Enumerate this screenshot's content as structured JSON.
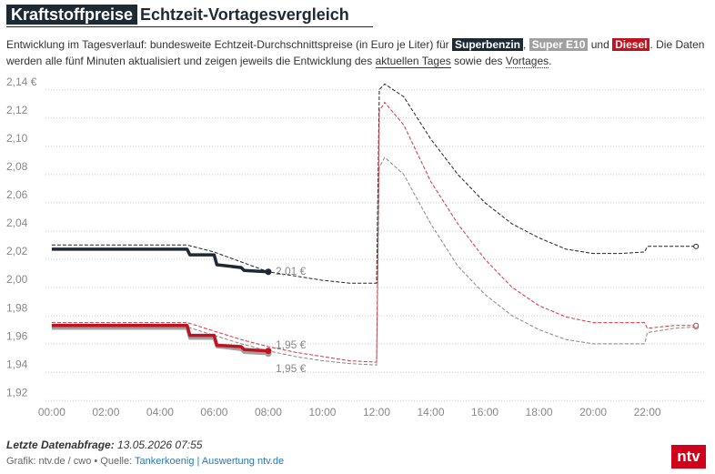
{
  "chart_data": {
    "type": "line",
    "title_box": "Kraftstoffpreise",
    "title": "Echtzeit-Vortagesvergleich",
    "subtitle_parts": [
      "Entwicklung im Tagesverlauf: bundesweite Echtzeit-Durchschnittspreise (in Euro je Liter) für ",
      ", ",
      " und ",
      ". Die Daten werden alle fünf Minuten aktualisiert und zeigen jeweils die Entwicklung des ",
      "aktuellen Tages",
      " sowie des ",
      "Vortages",
      "."
    ],
    "xlim": [
      -0.5,
      24.5
    ],
    "ylim": [
      1.915,
      2.145
    ],
    "xticks": [
      {
        "value": 0,
        "label": "00:00"
      },
      {
        "value": 2,
        "label": "02:00"
      },
      {
        "value": 4,
        "label": "04:00"
      },
      {
        "value": 6,
        "label": "06:00"
      },
      {
        "value": 8,
        "label": "08:00"
      },
      {
        "value": 10,
        "label": "10:00"
      },
      {
        "value": 12,
        "label": "12:00"
      },
      {
        "value": 14,
        "label": "14:00"
      },
      {
        "value": 16,
        "label": "16:00"
      },
      {
        "value": 18,
        "label": "18:00"
      },
      {
        "value": 20,
        "label": "20:00"
      },
      {
        "value": 22,
        "label": "22:00"
      }
    ],
    "yticks": [
      {
        "value": 2.14,
        "label": "2,14 €"
      },
      {
        "value": 2.12,
        "label": "2,12"
      },
      {
        "value": 2.1,
        "label": "2,10"
      },
      {
        "value": 2.08,
        "label": "2,08"
      },
      {
        "value": 2.06,
        "label": "2,06"
      },
      {
        "value": 2.04,
        "label": "2,04"
      },
      {
        "value": 2.02,
        "label": "2,02"
      },
      {
        "value": 2.0,
        "label": "2,00"
      },
      {
        "value": 1.98,
        "label": "1,98"
      },
      {
        "value": 1.96,
        "label": "1,96"
      },
      {
        "value": 1.94,
        "label": "1,94"
      },
      {
        "value": 1.92,
        "label": "1,92"
      }
    ],
    "grid": true,
    "series": [
      {
        "name": "Superbenzin",
        "color": "#1e2a33",
        "previous_color": "#222222",
        "today": {
          "x": [
            0,
            5,
            5.1,
            6,
            6.1,
            7,
            7.1,
            8
          ],
          "values": [
            2.022,
            2.022,
            2.018,
            2.018,
            2.011,
            2.009,
            2.007,
            2.006
          ]
        },
        "previous": {
          "x": [
            0,
            5,
            6,
            7,
            8,
            9,
            10,
            11,
            12,
            12.1,
            12.3,
            13,
            14,
            15,
            16,
            17,
            18,
            19,
            20,
            21,
            21.9,
            22,
            23,
            23.8
          ],
          "values": [
            2.025,
            2.025,
            2.02,
            2.013,
            2.006,
            2.003,
            2.0,
            1.998,
            1.998,
            2.135,
            2.139,
            2.13,
            2.1,
            2.075,
            2.055,
            2.04,
            2.03,
            2.022,
            2.019,
            2.019,
            2.02,
            2.024,
            2.024,
            2.024
          ]
        },
        "end_label": "2,01 €"
      },
      {
        "name": "Super E10",
        "color": "#a0a0a0",
        "previous_color": "#888888",
        "today": {
          "x": [
            0,
            5,
            5.1,
            6,
            6.1,
            7,
            7.1,
            8
          ],
          "values": [
            1.966,
            1.966,
            1.959,
            1.959,
            1.953,
            1.951,
            1.949,
            1.948
          ]
        },
        "previous": {
          "x": [
            0,
            5,
            6,
            7,
            8,
            9,
            10,
            11,
            12,
            12.1,
            12.3,
            13,
            14,
            15,
            16,
            17,
            18,
            19,
            20,
            21,
            21.9,
            22,
            23,
            23.8
          ],
          "values": [
            1.967,
            1.967,
            1.961,
            1.955,
            1.95,
            1.946,
            1.943,
            1.941,
            1.94,
            2.08,
            2.087,
            2.075,
            2.04,
            2.01,
            1.99,
            1.975,
            1.965,
            1.958,
            1.955,
            1.955,
            1.955,
            1.963,
            1.966,
            1.967
          ]
        },
        "end_label": "1,95 €"
      },
      {
        "name": "Diesel",
        "color": "#c1121f",
        "previous_color": "#d9343f",
        "today": {
          "x": [
            0,
            5,
            5.1,
            6,
            6.1,
            7,
            7.1,
            8
          ],
          "values": [
            1.968,
            1.968,
            1.961,
            1.961,
            1.954,
            1.953,
            1.951,
            1.95
          ]
        },
        "previous": {
          "x": [
            0,
            5,
            6,
            7,
            8,
            9,
            10,
            11,
            12,
            12.1,
            12.3,
            13,
            14,
            15,
            16,
            17,
            18,
            19,
            20,
            21,
            21.9,
            22,
            23,
            23.8
          ],
          "values": [
            1.97,
            1.97,
            1.964,
            1.958,
            1.953,
            1.949,
            1.946,
            1.943,
            1.942,
            2.12,
            2.126,
            2.11,
            2.07,
            2.04,
            2.015,
            1.995,
            1.982,
            1.974,
            1.97,
            1.97,
            1.97,
            1.966,
            1.968,
            1.968
          ]
        },
        "end_label": "1,95 €"
      }
    ],
    "footer_label": "Letzte Datenabfrage:",
    "footer_date": "13.05.2026 07:55",
    "credit": "Grafik: ntv.de / cwo • Quelle: ",
    "credit_link": "Tankerkoenig | Auswertung ntv.de",
    "logo": "ntv"
  }
}
